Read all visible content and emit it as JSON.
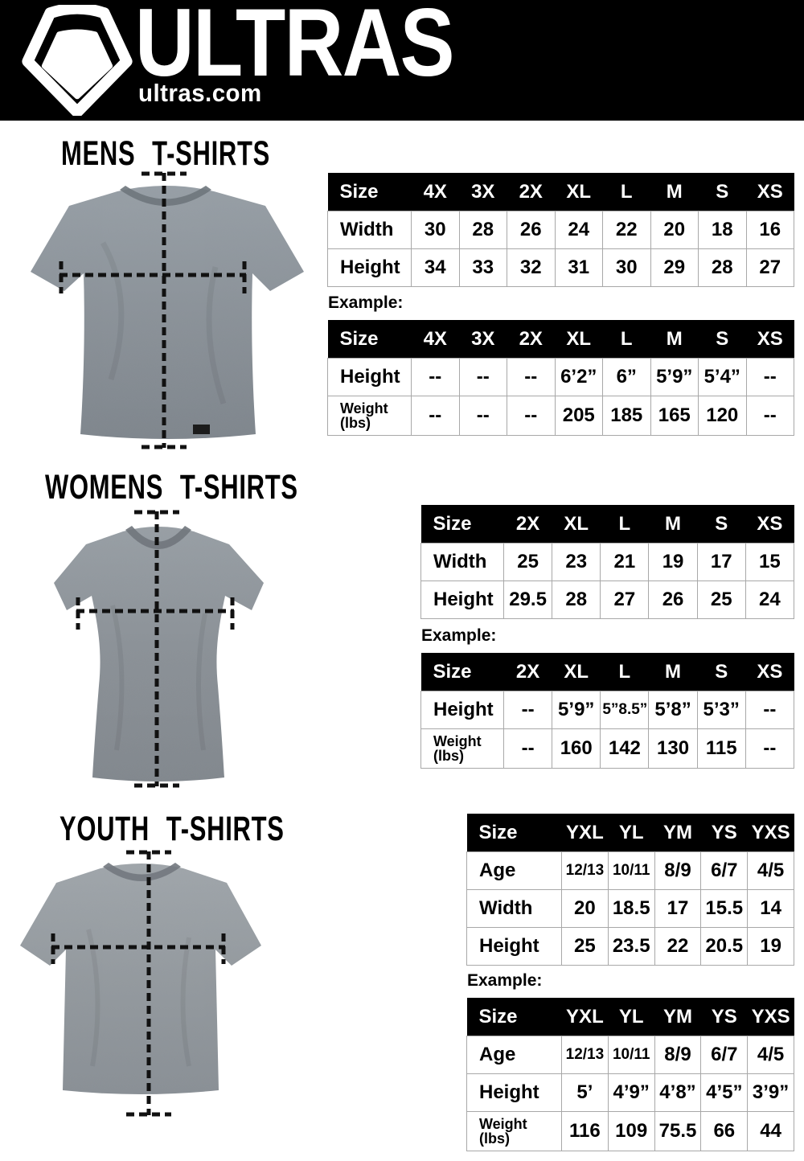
{
  "header": {
    "brand": "ULTRAS",
    "site": "ultras.com"
  },
  "colors": {
    "header_bg": "#000000",
    "table_header_bg": "#000000",
    "table_border": "#a8a8a8",
    "shirt_gray": "#8b9196",
    "dash_line": "#111111"
  },
  "sections": [
    {
      "id": "mens",
      "title": "MENS T-SHIRTS",
      "example_label": "Example:",
      "size_table": {
        "header": [
          "Size",
          "4X",
          "3X",
          "2X",
          "XL",
          "L",
          "M",
          "S",
          "XS"
        ],
        "rows": [
          {
            "label": "Width",
            "values": [
              "30",
              "28",
              "26",
              "24",
              "22",
              "20",
              "18",
              "16"
            ]
          },
          {
            "label": "Height",
            "values": [
              "34",
              "33",
              "32",
              "31",
              "30",
              "29",
              "28",
              "27"
            ]
          }
        ]
      },
      "example_table": {
        "header": [
          "Size",
          "4X",
          "3X",
          "2X",
          "XL",
          "L",
          "M",
          "S",
          "XS"
        ],
        "rows": [
          {
            "label": "Height",
            "values": [
              "--",
              "--",
              "--",
              "6’2”",
              "6”",
              "5’9”",
              "5’4”",
              "--"
            ]
          },
          {
            "label": "Weight (lbs)",
            "values": [
              "--",
              "--",
              "--",
              "205",
              "185",
              "165",
              "120",
              "--"
            ]
          }
        ]
      }
    },
    {
      "id": "womens",
      "title": "WOMENS T-SHIRTS",
      "example_label": "Example:",
      "size_table": {
        "header": [
          "Size",
          "2X",
          "XL",
          "L",
          "M",
          "S",
          "XS"
        ],
        "rows": [
          {
            "label": "Width",
            "values": [
              "25",
              "23",
              "21",
              "19",
              "17",
              "15"
            ]
          },
          {
            "label": "Height",
            "values": [
              "29.5",
              "28",
              "27",
              "26",
              "25",
              "24"
            ]
          }
        ]
      },
      "example_table": {
        "header": [
          "Size",
          "2X",
          "XL",
          "L",
          "M",
          "S",
          "XS"
        ],
        "rows": [
          {
            "label": "Height",
            "values": [
              "--",
              "5’9”",
              "5”8.5”",
              "5’8”",
              "5’3”",
              "--"
            ]
          },
          {
            "label": "Weight (lbs)",
            "values": [
              "--",
              "160",
              "142",
              "130",
              "115",
              "--"
            ]
          }
        ]
      }
    },
    {
      "id": "youth",
      "title": "YOUTH T-SHIRTS",
      "example_label": "Example:",
      "size_table": {
        "header": [
          "Size",
          "YXL",
          "YL",
          "YM",
          "YS",
          "YXS"
        ],
        "rows": [
          {
            "label": "Age",
            "values": [
              "12/13",
              "10/11",
              "8/9",
              "6/7",
              "4/5"
            ]
          },
          {
            "label": "Width",
            "values": [
              "20",
              "18.5",
              "17",
              "15.5",
              "14"
            ]
          },
          {
            "label": "Height",
            "values": [
              "25",
              "23.5",
              "22",
              "20.5",
              "19"
            ]
          }
        ]
      },
      "example_table": {
        "header": [
          "Size",
          "YXL",
          "YL",
          "YM",
          "YS",
          "YXS"
        ],
        "rows": [
          {
            "label": "Age",
            "values": [
              "12/13",
              "10/11",
              "8/9",
              "6/7",
              "4/5"
            ]
          },
          {
            "label": "Height",
            "values": [
              "5’",
              "4’9”",
              "4’8”",
              "4’5”",
              "3’9”"
            ]
          },
          {
            "label": "Weight (lbs)",
            "values": [
              "116",
              "109",
              "75.5",
              "66",
              "44"
            ]
          }
        ]
      }
    }
  ]
}
